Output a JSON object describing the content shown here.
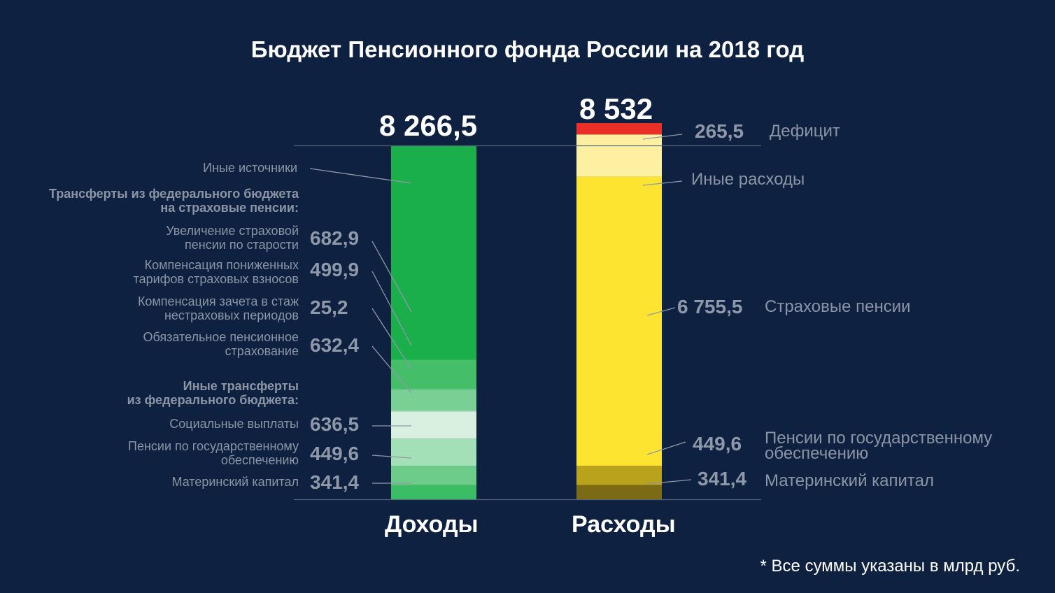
{
  "chart_data": {
    "type": "bar",
    "subtype": "stacked",
    "title": "Бюджет Пенсионного фонда России на 2018 год",
    "unit_note": "* Все суммы указаны в млрд руб.",
    "categories": [
      "Доходы",
      "Расходы"
    ],
    "income": {
      "total_label": "8 266,5",
      "total": 8266.5,
      "segments": [
        {
          "name": "Материнский капитал",
          "value": 341.4,
          "label": "341,4",
          "color": "#3bbd65"
        },
        {
          "name": "Пенсии по государственному обеспечению",
          "value": 449.6,
          "label": "449,6",
          "color": "#6dcc8a"
        },
        {
          "name": "Социальные выплаты",
          "value": 636.5,
          "label": "636,5",
          "color": "#a4e0b7"
        },
        {
          "name": "Обязательное пенсионное страхование",
          "value": 632.4,
          "label": "632,4",
          "color": "#d9f0e0"
        },
        {
          "name": "Компенсация зачета в стаж нестраховых периодов",
          "value": 25.2,
          "label": "25,2",
          "color": "#a9e2bc"
        },
        {
          "name": "Компенсация пониженных тарифов страховых взносов",
          "value": 499.9,
          "label": "499,9",
          "color": "#79d095"
        },
        {
          "name": "Увеличение страховой пенсии по старости",
          "value": 682.9,
          "label": "682,9",
          "color": "#45be6a"
        },
        {
          "name": "Иные источники",
          "value": 4998.6,
          "label": "",
          "color": "#1aaf4b"
        }
      ]
    },
    "expense": {
      "total_label": "8 532",
      "total": 8532,
      "segments": [
        {
          "name": "Материнский капитал",
          "value": 341.4,
          "label": "341,4",
          "color": "#7c6a14"
        },
        {
          "name": "Пенсии по государственному обеспечению",
          "value": 449.6,
          "label": "449,6",
          "color": "#b9a21c"
        },
        {
          "name": "Страховые пенсии",
          "value": 6755.5,
          "label": "6 755,5",
          "color": "#fde431"
        },
        {
          "name": "Иные расходы",
          "value": 985.5,
          "label": "",
          "color": "#fdf0a0"
        },
        {
          "name": "Дефицит",
          "value": 265.5,
          "label": "265,5",
          "color": "#ec2f26"
        }
      ]
    }
  },
  "labels": {
    "left": {
      "inye_istochniki": "Иные источники",
      "transfers_head_1": "Трансферты из федерального бюджета",
      "transfers_head_2": "на страховые пенсии:",
      "uvelichenie_1": "Увеличение страховой",
      "uvelichenie_2": "пенсии по старости",
      "kompens_tarif_1": "Компенсация пониженных",
      "kompens_tarif_2": "тарифов страховых взносов",
      "kompens_stazh_1": "Компенсация зачета в стаж",
      "kompens_stazh_2": "нестраховых периодов",
      "ops_1": "Обязательное пенсионное",
      "ops_2": "страхование",
      "other_transfers_head_1": "Иные трансферты",
      "other_transfers_head_2": "из федерального бюджета:",
      "social": "Социальные выплаты",
      "gos_1": "Пенсии по государственному",
      "gos_2": "обеспечению",
      "matkap": "Материнский капитал"
    },
    "right": {
      "deficit": "Дефицит",
      "inye_rashody": "Иные расходы",
      "strah_pensii": "Страховые пенсии",
      "gos_1": "Пенсии по государственному",
      "gos_2": "обеспечению",
      "matkap": "Материнский капитал"
    }
  }
}
